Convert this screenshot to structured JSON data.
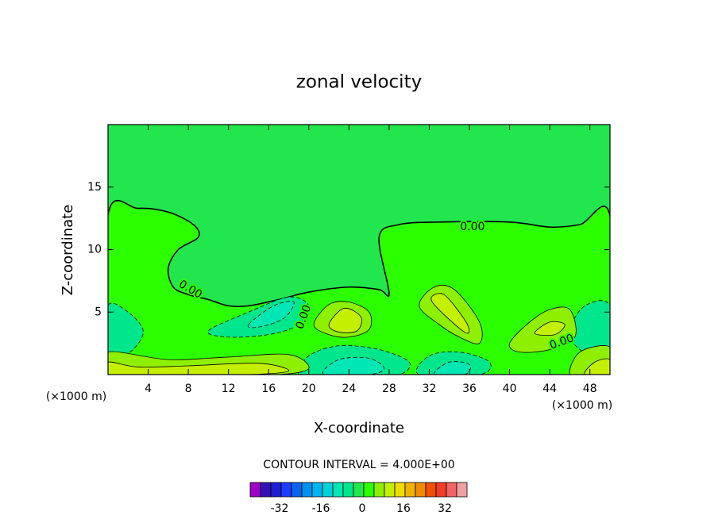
{
  "chart_data": {
    "type": "contour",
    "title": "zonal velocity",
    "x_label": "X-coordinate",
    "y_label": "Z-coordinate",
    "x_unit_labels": [
      "(×1000 m)",
      "(×1000 m)"
    ],
    "xlim": [
      0,
      50
    ],
    "ylim": [
      0,
      20
    ],
    "xticks": [
      4,
      8,
      12,
      16,
      20,
      24,
      28,
      32,
      36,
      40,
      44,
      48
    ],
    "yticks": [
      5,
      10,
      15
    ],
    "contour_interval_label": "CONTOUR INTERVAL = 4.000E+00",
    "colorbar": {
      "levels": [
        -40,
        -36,
        -32,
        -28,
        -24,
        -20,
        -16,
        -12,
        -8,
        -4,
        0,
        4,
        8,
        12,
        16,
        20,
        24,
        28,
        32,
        36
      ],
      "colors": [
        "#a000c8",
        "#3214b4",
        "#1e1ed2",
        "#1e3cff",
        "#0a64f0",
        "#0090f0",
        "#00b4f0",
        "#00d2dc",
        "#00e6b4",
        "#00e68c",
        "#22e64e",
        "#2cff00",
        "#8ef000",
        "#c4f000",
        "#f0dc00",
        "#f0b400",
        "#f08c00",
        "#f05000",
        "#f03c28",
        "#f06464",
        "#f0a0a0"
      ],
      "ticks": [
        -32,
        -16,
        0,
        16,
        32
      ]
    },
    "regions": [
      {
        "level": -4,
        "x": [
          0,
          50,
          50,
          0
        ],
        "y": [
          0,
          0,
          20,
          20
        ]
      },
      {
        "level": 0,
        "x": [
          0,
          0,
          3,
          6,
          8.5,
          9,
          7,
          6,
          6.5,
          8,
          10,
          12,
          14,
          17,
          20,
          24,
          27,
          28,
          27,
          29,
          33,
          40,
          44,
          47,
          50,
          50
        ],
        "y": [
          0,
          12.8,
          13.3,
          13,
          12,
          11,
          10,
          8.5,
          7,
          6.4,
          6,
          5.5,
          5.5,
          6,
          6.6,
          7,
          6.8,
          6.5,
          11,
          12,
          12.2,
          12.2,
          11.8,
          12,
          12.7,
          0
        ]
      },
      {
        "level": -8,
        "x": [
          0,
          0,
          2,
          3.5,
          2.5,
          1
        ],
        "y": [
          1.5,
          5.5,
          5,
          3.5,
          2,
          1.5
        ]
      },
      {
        "level": -8,
        "x": [
          10,
          14,
          18,
          20,
          19,
          16,
          12
        ],
        "y": [
          3.5,
          5,
          6.2,
          5.5,
          4,
          3.2,
          3
        ]
      },
      {
        "level": -12,
        "x": [
          14,
          16.5,
          18.5,
          17.5,
          15
        ],
        "y": [
          4,
          5.5,
          5.8,
          4.5,
          3.8
        ]
      },
      {
        "level": -8,
        "x": [
          19,
          20,
          23,
          27,
          30,
          29,
          25,
          21
        ],
        "y": [
          0,
          1.5,
          2.3,
          2,
          1,
          0,
          0,
          0
        ]
      },
      {
        "level": -12,
        "x": [
          21.5,
          23,
          26,
          27.5,
          26
        ],
        "y": [
          0,
          1.2,
          1.3,
          0.5,
          0
        ]
      },
      {
        "level": -8,
        "x": [
          31,
          32,
          35,
          38,
          37
        ],
        "y": [
          0,
          1.5,
          1.8,
          1,
          0
        ]
      },
      {
        "level": -12,
        "x": [
          32.5,
          34,
          36,
          35.5
        ],
        "y": [
          0,
          1,
          0.8,
          0
        ]
      },
      {
        "level": -8,
        "x": [
          50,
          47,
          46,
          47.5,
          50
        ],
        "y": [
          1,
          2,
          3.5,
          5.5,
          5.5
        ]
      },
      {
        "level": 4,
        "x": [
          0,
          0,
          6,
          12,
          18,
          20,
          17,
          10,
          4
        ],
        "y": [
          0,
          1.8,
          1.2,
          1.4,
          1.6,
          0.5,
          0,
          0,
          0
        ]
      },
      {
        "level": 8,
        "x": [
          0,
          0,
          3,
          8,
          15,
          18,
          14,
          6
        ],
        "y": [
          0,
          1,
          0.6,
          0.7,
          0.9,
          0.3,
          0,
          0
        ]
      },
      {
        "level": 4,
        "x": [
          20.5,
          22,
          24,
          26,
          26,
          24,
          22
        ],
        "y": [
          4,
          5.6,
          5.8,
          5,
          3.6,
          3,
          3.2
        ]
      },
      {
        "level": 8,
        "x": [
          22,
          23.5,
          25.2,
          24.8,
          23
        ],
        "y": [
          4,
          5.3,
          4.6,
          3.5,
          3.4
        ]
      },
      {
        "level": 4,
        "x": [
          31,
          32.5,
          34.5,
          37,
          37,
          35,
          33
        ],
        "y": [
          5.5,
          7,
          6.8,
          4.2,
          2.5,
          3,
          4
        ]
      },
      {
        "level": 8,
        "x": [
          32.3,
          33,
          34,
          35.8,
          35.5
        ],
        "y": [
          5.8,
          6.5,
          6,
          4,
          3.4
        ]
      },
      {
        "level": 4,
        "x": [
          40,
          42,
          44,
          46,
          46.5,
          44,
          41
        ],
        "y": [
          2.5,
          4.2,
          5.2,
          5.2,
          3,
          2,
          1.8
        ]
      },
      {
        "level": 8,
        "x": [
          42.5,
          44,
          45.5,
          44.5
        ],
        "y": [
          3.3,
          4.2,
          4,
          3.2
        ]
      },
      {
        "level": 4,
        "x": [
          46,
          47,
          50,
          50,
          48
        ],
        "y": [
          0,
          1.8,
          2.2,
          0,
          0
        ]
      },
      {
        "level": 8,
        "x": [
          47.5,
          48.5,
          50,
          50
        ],
        "y": [
          0,
          1,
          1.2,
          0
        ]
      }
    ],
    "contour_labels": [
      {
        "value": 0,
        "label": "0.00",
        "x": 36.3,
        "y": 11.8
      },
      {
        "value": 0,
        "label": "0.00",
        "x": 8.2,
        "y": 6.8
      },
      {
        "value": 0,
        "label": "0.00",
        "x": 19.5,
        "y": 4.6
      },
      {
        "value": 0,
        "label": "0.00",
        "x": 45.2,
        "y": 2.6
      }
    ]
  }
}
